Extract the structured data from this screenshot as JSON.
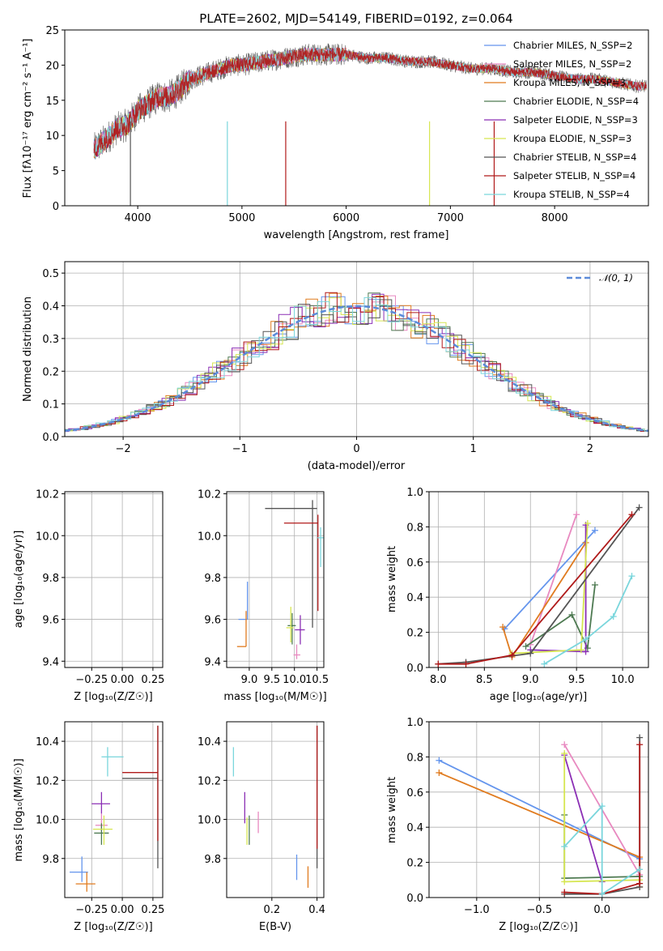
{
  "chart_data": [
    {
      "type": "line",
      "id": "spectrum",
      "title": "PLATE=2602, MJD=54149, FIBERID=0192, z=0.064",
      "xlabel": "wavelength [Angstrom, rest frame]",
      "ylabel": "Flux [fλ10⁻¹⁷ erg cm⁻² s⁻¹ A⁻¹]",
      "xlim": [
        3300,
        8900
      ],
      "ylim": [
        0,
        25
      ],
      "xticks": [
        4000,
        5000,
        6000,
        7000,
        8000
      ],
      "yticks": [
        0,
        5,
        10,
        15,
        20,
        25
      ],
      "legend_position": "upper right",
      "series": [
        {
          "name": "Chabrier MILES, N_SSP=2",
          "color": "#6495ed"
        },
        {
          "name": "Salpeter MILES, N_SSP=2",
          "color": "#e889c0"
        },
        {
          "name": "Kroupa MILES, N_SSP=3",
          "color": "#e07b1f"
        },
        {
          "name": "Chabrier ELODIE, N_SSP=4",
          "color": "#4e7a52"
        },
        {
          "name": "Salpeter ELODIE, N_SSP=3",
          "color": "#8b2fb5"
        },
        {
          "name": "Kroupa ELODIE, N_SSP=3",
          "color": "#d6e650"
        },
        {
          "name": "Chabrier STELIB, N_SSP=4",
          "color": "#555555"
        },
        {
          "name": "Salpeter STELIB, N_SSP=4",
          "color": "#b01a1a"
        },
        {
          "name": "Kroupa STELIB, N_SSP=4",
          "color": "#7ad6dc"
        }
      ],
      "continuum": {
        "x": [
          3580,
          3700,
          3800,
          3900,
          4000,
          4100,
          4200,
          4300,
          4400,
          4500,
          4600,
          4700,
          4800,
          4900,
          5000,
          5200,
          5400,
          5600,
          5800,
          6000,
          6200,
          6400,
          6600,
          6800,
          7000,
          7200,
          7400,
          7600,
          7800,
          8000,
          8200,
          8400,
          8600,
          8800
        ],
        "y": [
          8,
          9.5,
          11,
          11.5,
          13.5,
          14.5,
          15.5,
          15.5,
          16.5,
          18,
          18.5,
          19,
          19.5,
          20,
          20,
          20.5,
          21,
          21.5,
          21.5,
          21.5,
          21,
          21,
          20.5,
          20.5,
          20,
          19.5,
          19.5,
          19,
          19,
          18.5,
          18,
          18,
          17.5,
          17
        ]
      }
    },
    {
      "type": "histogram",
      "id": "residuals",
      "xlabel": "(data-model)/error",
      "ylabel": "Normed distribution",
      "xlim": [
        -2.5,
        2.5
      ],
      "ylim": [
        0,
        0.535
      ],
      "xticks": [
        -2,
        -1,
        0,
        1,
        2
      ],
      "yticks": [
        0.0,
        0.1,
        0.2,
        0.3,
        0.4,
        0.5
      ],
      "legend": "𝒩(0, 1)",
      "legend_position": "upper right",
      "reference_curve": "normal(0,1)",
      "reference_color": "#5b8bd9"
    },
    {
      "type": "scatter",
      "id": "age_vs_Z",
      "xlabel": "Z [log₁₀(Z/Z☉)]",
      "ylabel": "age  [log₁₀(age/yr)]",
      "xlim": [
        -0.47,
        0.33
      ],
      "ylim": [
        9.37,
        10.21
      ],
      "xticks": [
        -0.25,
        0.0,
        0.25
      ],
      "xticklabels": [
        "−0.25",
        "0.00",
        "0.25"
      ],
      "yticks": [
        9.4,
        9.6,
        9.8,
        10.0,
        10.2
      ],
      "points": [
        {
          "color": "#6495ed",
          "x": -0.33,
          "y": 9.6,
          "xerr": [
            0.15,
            0.0
          ],
          "yerr": [
            0.0,
            0.18
          ]
        },
        {
          "color": "#e889c0",
          "x": -0.17,
          "y": 9.43,
          "xerr": [
            0.06,
            0.1
          ],
          "yerr": [
            0.02,
            0.05
          ]
        },
        {
          "color": "#e07b1f",
          "x": -0.27,
          "y": 9.47,
          "xerr": [
            0.12,
            0.0
          ],
          "yerr": [
            0.0,
            0.17
          ]
        },
        {
          "color": "#4e7a52",
          "x": -0.18,
          "y": 9.57,
          "xerr": [
            0.07,
            0.08
          ],
          "yerr": [
            0.09,
            0.06
          ]
        },
        {
          "color": "#8b2fb5",
          "x": -0.17,
          "y": 9.55,
          "xerr": [
            0.08,
            0.1
          ],
          "yerr": [
            0.07,
            0.07
          ]
        },
        {
          "color": "#d6e650",
          "x": -0.15,
          "y": 9.56,
          "xerr": [
            0.09,
            0.08
          ],
          "yerr": [
            0.07,
            0.1
          ]
        },
        {
          "color": "#555555",
          "x": 0.29,
          "y": 10.13,
          "xerr": [
            0.29,
            0.0
          ],
          "yerr": [
            0.57,
            0.04
          ]
        },
        {
          "color": "#b01a1a",
          "x": 0.29,
          "y": 10.06,
          "xerr": [
            0.29,
            0.0
          ],
          "yerr": [
            0.42,
            0.08
          ]
        },
        {
          "color": "#7ad6dc",
          "x": -0.12,
          "y": 9.99,
          "xerr": [
            0.05,
            0.14
          ],
          "yerr": [
            0.14,
            0.05
          ]
        }
      ]
    },
    {
      "type": "scatter",
      "id": "age_vs_mass",
      "xlabel": "mass [log₁₀(M/M☉)]",
      "xlim": [
        8.5,
        10.65
      ],
      "ylim": [
        9.37,
        10.21
      ],
      "xticks": [
        9.0,
        9.5,
        10.0,
        10.5
      ],
      "yticks": [
        9.4,
        9.6,
        9.8,
        10.0,
        10.2
      ],
      "points": [
        {
          "color": "#6495ed",
          "x": 8.96,
          "y": 9.6,
          "xerr": [
            0.2,
            0.0
          ],
          "yerr": [
            0.0,
            0.18
          ]
        },
        {
          "color": "#e889c0",
          "x": 10.05,
          "y": 9.43,
          "xerr": [
            0.07,
            0.08
          ],
          "yerr": [
            0.02,
            0.05
          ]
        },
        {
          "color": "#e07b1f",
          "x": 8.93,
          "y": 9.47,
          "xerr": [
            0.2,
            0.0
          ],
          "yerr": [
            0.0,
            0.17
          ]
        },
        {
          "color": "#4e7a52",
          "x": 9.95,
          "y": 9.57,
          "xerr": [
            0.1,
            0.08
          ],
          "yerr": [
            0.09,
            0.06
          ]
        },
        {
          "color": "#8b2fb5",
          "x": 10.13,
          "y": 9.55,
          "xerr": [
            0.12,
            0.1
          ],
          "yerr": [
            0.07,
            0.07
          ]
        },
        {
          "color": "#d6e650",
          "x": 9.92,
          "y": 9.56,
          "xerr": [
            0.1,
            0.06
          ],
          "yerr": [
            0.07,
            0.1
          ]
        },
        {
          "color": "#555555",
          "x": 10.4,
          "y": 10.13,
          "xerr": [
            1.05,
            0.1
          ],
          "yerr": [
            0.57,
            0.04
          ]
        },
        {
          "color": "#b01a1a",
          "x": 10.52,
          "y": 10.06,
          "xerr": [
            0.75,
            0.0
          ],
          "yerr": [
            0.42,
            0.04
          ]
        },
        {
          "color": "#7ad6dc",
          "x": 10.58,
          "y": 9.99,
          "xerr": [
            0.07,
            0.06
          ],
          "yerr": [
            0.14,
            0.05
          ]
        }
      ]
    },
    {
      "type": "line",
      "id": "massweight_vs_age",
      "xlabel": "age  [log₁₀(age/yr)]",
      "ylabel": "mass weight",
      "xlim": [
        7.9,
        10.28
      ],
      "ylim": [
        0,
        1
      ],
      "xticks": [
        8.0,
        8.5,
        9.0,
        9.5,
        10.0
      ],
      "yticks": [
        0.0,
        0.2,
        0.4,
        0.6,
        0.8,
        1.0
      ],
      "series": [
        {
          "color": "#6495ed",
          "x": [
            8.72,
            9.7
          ],
          "y": [
            0.22,
            0.78
          ]
        },
        {
          "color": "#e889c0",
          "x": [
            9.0,
            9.5
          ],
          "y": [
            0.13,
            0.87
          ]
        },
        {
          "color": "#e07b1f",
          "x": [
            8.7,
            8.8,
            9.6
          ],
          "y": [
            0.23,
            0.06,
            0.71
          ]
        },
        {
          "color": "#4e7a52",
          "x": [
            8.95,
            9.45,
            9.62,
            9.7
          ],
          "y": [
            0.12,
            0.3,
            0.11,
            0.47
          ]
        },
        {
          "color": "#8b2fb5",
          "x": [
            9.0,
            9.6,
            9.6
          ],
          "y": [
            0.1,
            0.09,
            0.81
          ]
        },
        {
          "color": "#d6e650",
          "x": [
            8.8,
            9.55,
            9.62
          ],
          "y": [
            0.08,
            0.1,
            0.82
          ]
        },
        {
          "color": "#555555",
          "x": [
            8.0,
            8.3,
            9.0,
            10.18
          ],
          "y": [
            0.02,
            0.03,
            0.08,
            0.91
          ]
        },
        {
          "color": "#b01a1a",
          "x": [
            8.0,
            8.3,
            8.8,
            10.1
          ],
          "y": [
            0.02,
            0.02,
            0.07,
            0.87
          ]
        },
        {
          "color": "#7ad6dc",
          "x": [
            9.15,
            9.6,
            9.9,
            10.1
          ],
          "y": [
            0.02,
            0.16,
            0.29,
            0.52
          ]
        }
      ]
    },
    {
      "type": "scatter",
      "id": "mass_vs_Z",
      "xlabel": "Z [log₁₀(Z/Z☉)]",
      "ylabel": "mass [log₁₀(M/M☉)]",
      "xlim": [
        -0.47,
        0.33
      ],
      "ylim": [
        9.6,
        10.5
      ],
      "xticks": [
        -0.25,
        0.0,
        0.25
      ],
      "xticklabels": [
        "−0.25",
        "0.00",
        "0.25"
      ],
      "yticks": [
        9.8,
        10.0,
        10.2,
        10.4
      ],
      "points": [
        {
          "color": "#6495ed",
          "x": -0.33,
          "y": 9.73,
          "xerr": [
            0.1,
            0.05
          ],
          "yerr": [
            0.05,
            0.08
          ]
        },
        {
          "color": "#e07b1f",
          "x": -0.29,
          "y": 9.67,
          "xerr": [
            0.09,
            0.07
          ],
          "yerr": [
            0.04,
            0.06
          ]
        },
        {
          "color": "#e889c0",
          "x": -0.17,
          "y": 9.97,
          "xerr": [
            0.05,
            0.05
          ],
          "yerr": [
            0.03,
            0.06
          ]
        },
        {
          "color": "#4e7a52",
          "x": -0.17,
          "y": 9.93,
          "xerr": [
            0.06,
            0.06
          ],
          "yerr": [
            0.06,
            0.05
          ]
        },
        {
          "color": "#8b2fb5",
          "x": -0.17,
          "y": 10.08,
          "xerr": [
            0.08,
            0.07
          ],
          "yerr": [
            0.05,
            0.06
          ]
        },
        {
          "color": "#d6e650",
          "x": -0.15,
          "y": 9.95,
          "xerr": [
            0.09,
            0.07
          ],
          "yerr": [
            0.08,
            0.07
          ]
        },
        {
          "color": "#7ad6dc",
          "x": -0.12,
          "y": 10.32,
          "xerr": [
            0.05,
            0.13
          ],
          "yerr": [
            0.1,
            0.05
          ]
        },
        {
          "color": "#555555",
          "x": 0.29,
          "y": 10.21,
          "xerr": [
            0.29,
            0.0
          ],
          "yerr": [
            0.46,
            0.27
          ]
        },
        {
          "color": "#b01a1a",
          "x": 0.29,
          "y": 10.24,
          "xerr": [
            0.29,
            0.0
          ],
          "yerr": [
            0.35,
            0.24
          ]
        }
      ]
    },
    {
      "type": "scatter",
      "id": "mass_vs_EBV",
      "xlabel": "E(B-V)",
      "xlim": [
        0.0,
        0.43
      ],
      "ylim": [
        9.6,
        10.5
      ],
      "xticks": [
        0.2,
        0.4
      ],
      "yticks": [
        9.8,
        10.0,
        10.2,
        10.4
      ],
      "points": [
        {
          "color": "#7ad6dc",
          "x": 0.03,
          "y": 10.3,
          "xerr": [
            0,
            0
          ],
          "yerr": [
            0.08,
            0.07
          ]
        },
        {
          "color": "#8b2fb5",
          "x": 0.08,
          "y": 10.06,
          "xerr": [
            0,
            0
          ],
          "yerr": [
            0.08,
            0.08
          ]
        },
        {
          "color": "#4e7a52",
          "x": 0.1,
          "y": 9.95,
          "xerr": [
            0,
            0
          ],
          "yerr": [
            0.08,
            0.07
          ]
        },
        {
          "color": "#d6e650",
          "x": 0.09,
          "y": 9.94,
          "xerr": [
            0,
            0
          ],
          "yerr": [
            0.07,
            0.07
          ]
        },
        {
          "color": "#e889c0",
          "x": 0.14,
          "y": 9.98,
          "xerr": [
            0,
            0
          ],
          "yerr": [
            0.05,
            0.06
          ]
        },
        {
          "color": "#6495ed",
          "x": 0.31,
          "y": 9.75,
          "xerr": [
            0,
            0
          ],
          "yerr": [
            0.06,
            0.07
          ]
        },
        {
          "color": "#e07b1f",
          "x": 0.36,
          "y": 9.7,
          "xerr": [
            0,
            0
          ],
          "yerr": [
            0.05,
            0.06
          ]
        },
        {
          "color": "#555555",
          "x": 0.4,
          "y": 10.12,
          "xerr": [
            0,
            0
          ],
          "yerr": [
            0.37,
            0.36
          ]
        },
        {
          "color": "#b01a1a",
          "x": 0.4,
          "y": 10.1,
          "xerr": [
            0,
            0
          ],
          "yerr": [
            0.25,
            0.38
          ]
        }
      ]
    },
    {
      "type": "line",
      "id": "massweight_vs_Z",
      "xlabel": "Z [log₁₀(Z/Z☉)]",
      "ylabel": "mass weight",
      "xlim": [
        -1.38,
        0.37
      ],
      "ylim": [
        0,
        1
      ],
      "xticks": [
        -1.0,
        -0.5,
        0.0
      ],
      "xticklabels": [
        "−1.0",
        "−0.5",
        "0.0"
      ],
      "yticks": [
        0.0,
        0.2,
        0.4,
        0.6,
        0.8,
        1.0
      ],
      "series": [
        {
          "color": "#6495ed",
          "x": [
            -1.3,
            0.3
          ],
          "y": [
            0.78,
            0.22
          ]
        },
        {
          "color": "#e07b1f",
          "x": [
            -1.3,
            0.3,
            0.3
          ],
          "y": [
            0.71,
            0.23,
            0.06
          ]
        },
        {
          "color": "#e889c0",
          "x": [
            -0.3,
            0.3
          ],
          "y": [
            0.87,
            0.13
          ]
        },
        {
          "color": "#4e7a52",
          "x": [
            -0.3,
            -0.3,
            0.3
          ],
          "y": [
            0.47,
            0.11,
            0.12
          ]
        },
        {
          "color": "#8b2fb5",
          "x": [
            -0.3,
            0.0
          ],
          "y": [
            0.81,
            0.09
          ]
        },
        {
          "color": "#d6e650",
          "x": [
            -0.3,
            -0.3,
            0.3
          ],
          "y": [
            0.82,
            0.09,
            0.1
          ]
        },
        {
          "color": "#555555",
          "x": [
            -0.3,
            0.0,
            0.3,
            0.3
          ],
          "y": [
            0.02,
            0.02,
            0.06,
            0.91
          ]
        },
        {
          "color": "#b01a1a",
          "x": [
            -0.3,
            0.0,
            0.3,
            0.3
          ],
          "y": [
            0.03,
            0.02,
            0.08,
            0.87
          ]
        },
        {
          "color": "#7ad6dc",
          "x": [
            -0.3,
            0.0,
            0.0,
            0.3
          ],
          "y": [
            0.29,
            0.52,
            0.02,
            0.16
          ]
        }
      ]
    }
  ]
}
